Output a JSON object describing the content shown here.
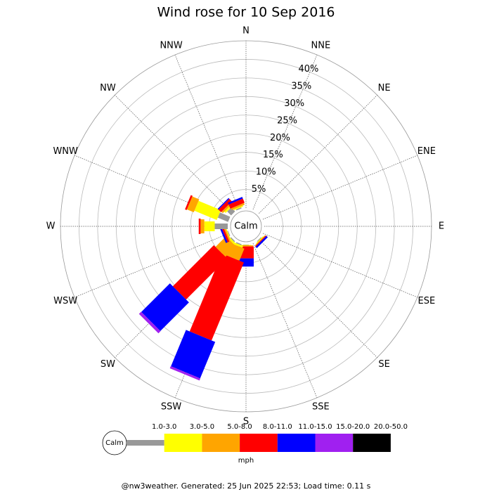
{
  "chart_data": {
    "type": "windrose",
    "title": "Wind rose for 10 Sep 2016",
    "directions": [
      "N",
      "NNE",
      "NE",
      "ENE",
      "E",
      "ESE",
      "SE",
      "SSE",
      "S",
      "SSW",
      "SW",
      "WSW",
      "W",
      "WNW",
      "NW",
      "NNW"
    ],
    "center_label": "Calm",
    "rlim": [
      0,
      45
    ],
    "rticks": [
      {
        "value": 5,
        "label": "5%"
      },
      {
        "value": 10,
        "label": "10%"
      },
      {
        "value": 15,
        "label": "15%"
      },
      {
        "value": 20,
        "label": "20%"
      },
      {
        "value": 25,
        "label": "25%"
      },
      {
        "value": 30,
        "label": "30%"
      },
      {
        "value": 35,
        "label": "35%"
      },
      {
        "value": 40,
        "label": "40%"
      }
    ],
    "series": [
      {
        "name": "1.0-3.0",
        "color": "#999999",
        "values": [
          0,
          0,
          0,
          0,
          0,
          0,
          0.2,
          0,
          0.1,
          0.3,
          0.3,
          0.2,
          3.5,
          3,
          1.5,
          0.3
        ]
      },
      {
        "name": "3.0-5.0",
        "color": "#ffff00",
        "values": [
          0,
          0,
          0,
          0,
          0,
          0,
          0.2,
          0,
          0.1,
          0.5,
          0.5,
          0.2,
          2.8,
          6.5,
          0.5,
          0.3
        ]
      },
      {
        "name": "5.0-8.0",
        "color": "#ffa500",
        "values": [
          0,
          0,
          0,
          0,
          0,
          0,
          0.2,
          0,
          0.3,
          3.5,
          4,
          0.4,
          1,
          2,
          0.5,
          0.5
        ]
      },
      {
        "name": "8.0-11.0",
        "color": "#ff0000",
        "values": [
          0,
          0,
          0,
          0,
          0,
          0,
          0.2,
          0,
          3.2,
          22.7,
          15.6,
          0.5,
          0.5,
          0.5,
          1,
          1.2
        ]
      },
      {
        "name": "11.0-15.0",
        "color": "#0000ff",
        "values": [
          0,
          0,
          0,
          0,
          0,
          0,
          0.5,
          0,
          2.2,
          10.6,
          10.9,
          0.5,
          0,
          0,
          0.3,
          0.5
        ]
      },
      {
        "name": "15.0-20.0",
        "color": "#a020f0",
        "values": [
          0,
          0,
          0,
          0,
          0,
          0,
          0,
          0,
          0,
          0.6,
          0.8,
          0,
          0,
          0,
          0,
          0
        ]
      },
      {
        "name": "20.0-50.0",
        "color": "#000000",
        "values": [
          0,
          0,
          0,
          0,
          0,
          0,
          0,
          0,
          0,
          0,
          0,
          0,
          0,
          0,
          0,
          0
        ]
      }
    ],
    "legend_unit": "mph",
    "footer": "@nw3weather. Generated: 25 Jun 2025 22:53; Load time: 0.11 s"
  }
}
